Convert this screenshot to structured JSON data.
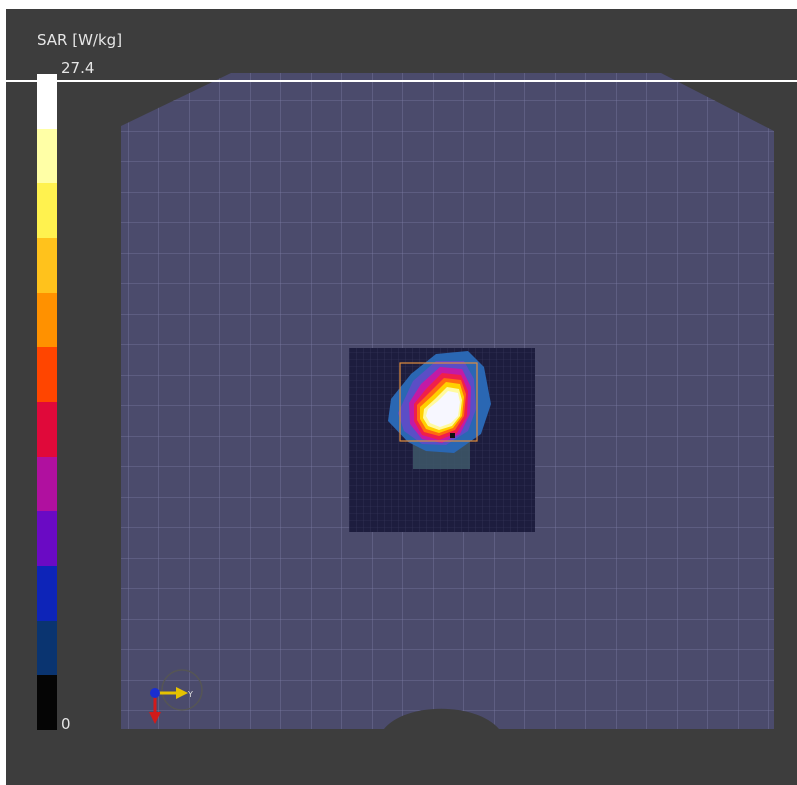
{
  "colorbar": {
    "title": "SAR [W/kg]",
    "max_label": "27.4",
    "min_label": "0",
    "colors": [
      "#ffffff",
      "#ffffa6",
      "#fff24f",
      "#ffc21c",
      "#ff9100",
      "#ff4500",
      "#e0093a",
      "#b0109f",
      "#6a0ac4",
      "#0d24b8",
      "#0a3470",
      "#050505"
    ]
  },
  "axes": {
    "y_label": "Y"
  }
}
